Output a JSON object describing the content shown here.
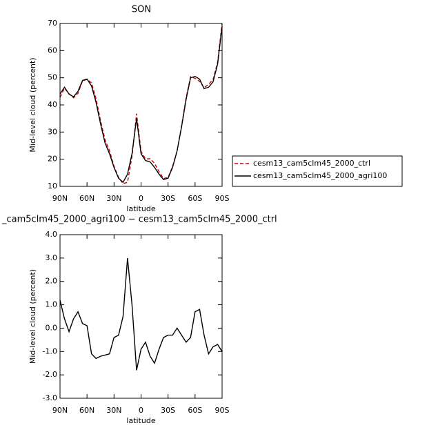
{
  "chart_data": [
    {
      "type": "line",
      "title": "SON",
      "ylabel": "Mid-level cloud (percent)",
      "xlabel": "latitude",
      "x": [
        90,
        85,
        80,
        75,
        70,
        65,
        60,
        55,
        50,
        45,
        40,
        35,
        30,
        25,
        20,
        15,
        10,
        5,
        0,
        -5,
        -10,
        -15,
        -20,
        -25,
        -30,
        -35,
        -40,
        -45,
        -50,
        -55,
        -60,
        -65,
        -70,
        -75,
        -80,
        -85,
        -90
      ],
      "xlim": [
        90,
        -90
      ],
      "xticks": [
        {
          "value": 90,
          "label": "90N"
        },
        {
          "value": 60,
          "label": "60N"
        },
        {
          "value": 30,
          "label": "30N"
        },
        0,
        {
          "value": -30,
          "label": "30S"
        },
        {
          "value": -60,
          "label": "60S"
        },
        {
          "value": -90,
          "label": "90S"
        }
      ],
      "ylim": [
        10,
        70
      ],
      "yticks": [
        10,
        20,
        30,
        40,
        50,
        60,
        70
      ],
      "legend": "right",
      "series": [
        {
          "name": "cesm13_cam5clm45_2000_ctrl",
          "color": "#cc0000",
          "dash": true,
          "values": [
            42.8,
            46.1,
            44.15,
            42.6,
            44.3,
            48.8,
            49.4,
            48.1,
            42.3,
            34.2,
            27.15,
            23.1,
            17.4,
            13.3,
            11,
            11.5,
            21,
            36.8,
            22.9,
            20.1,
            20.2,
            18.5,
            15.4,
            12.9,
            13.3,
            17.3,
            23,
            32.3,
            42.6,
            50.4,
            49.8,
            48.7,
            46.3,
            47.6,
            49.3,
            55.7,
            70
          ]
        },
        {
          "name": "cesm13_cam5clm45_2000_agri100",
          "color": "#000000",
          "dash": false,
          "values": [
            44,
            46.5,
            44,
            43,
            45,
            49,
            49.5,
            47,
            41,
            33,
            26,
            22,
            17,
            13,
            11.5,
            14.5,
            22,
            35,
            22,
            19.5,
            19,
            17,
            14.5,
            12.5,
            13,
            17,
            23,
            32,
            42,
            50,
            50.5,
            49.5,
            46,
            46.5,
            48.5,
            55,
            69
          ]
        }
      ]
    },
    {
      "type": "line",
      "title": "_cam5clm45_2000_agri100 − cesm13_cam5clm45_2000_ctrl",
      "ylabel": "Mid-level cloud (percent)",
      "xlabel": "latitude",
      "x": [
        90,
        85,
        80,
        75,
        70,
        65,
        60,
        55,
        50,
        45,
        40,
        35,
        30,
        25,
        20,
        15,
        10,
        5,
        0,
        -5,
        -10,
        -15,
        -20,
        -25,
        -30,
        -35,
        -40,
        -45,
        -50,
        -55,
        -60,
        -65,
        -70,
        -75,
        -80,
        -85,
        -90
      ],
      "xlim": [
        90,
        -90
      ],
      "xticks": [
        {
          "value": 90,
          "label": "90N"
        },
        {
          "value": 60,
          "label": "60N"
        },
        {
          "value": 30,
          "label": "30N"
        },
        0,
        {
          "value": -30,
          "label": "30S"
        },
        {
          "value": -60,
          "label": "60S"
        },
        {
          "value": -90,
          "label": "90S"
        }
      ],
      "ylim": [
        -3,
        4
      ],
      "yticks": [
        {
          "value": -3,
          "label": "-3.0"
        },
        {
          "value": -2,
          "label": "-2.0"
        },
        {
          "value": -1,
          "label": "-1.0"
        },
        {
          "value": 0,
          "label": "0.0"
        },
        {
          "value": 1,
          "label": "1.0"
        },
        {
          "value": 2,
          "label": "2.0"
        },
        {
          "value": 3,
          "label": "3.0"
        },
        {
          "value": 4,
          "label": "4.0"
        }
      ],
      "series": [
        {
          "color": "#000000",
          "dash": false,
          "values": [
            1.2,
            0.4,
            -0.15,
            0.4,
            0.7,
            0.2,
            0.1,
            -1.1,
            -1.3,
            -1.2,
            -1.15,
            -1.1,
            -0.4,
            -0.3,
            0.5,
            3.0,
            1.0,
            -1.8,
            -0.9,
            -0.6,
            -1.2,
            -1.5,
            -0.9,
            -0.4,
            -0.3,
            -0.3,
            0.0,
            -0.3,
            -0.6,
            -0.4,
            0.7,
            0.8,
            -0.3,
            -1.1,
            -0.8,
            -0.7,
            -1.0
          ]
        }
      ]
    }
  ]
}
